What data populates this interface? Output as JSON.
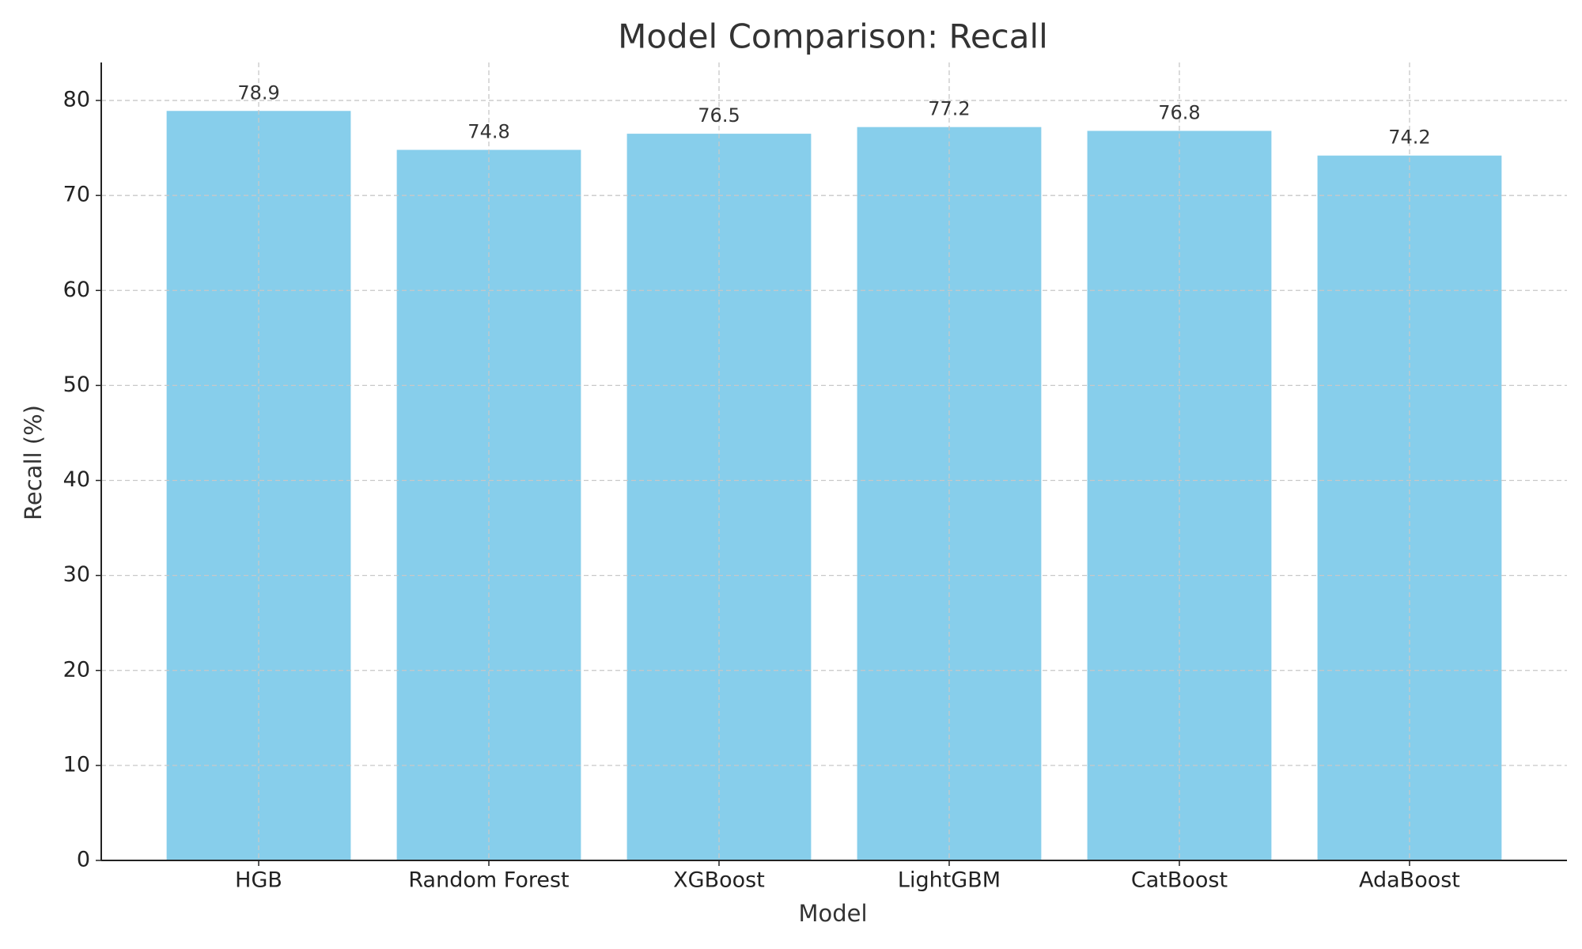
{
  "chart_data": {
    "type": "bar",
    "title": "Model Comparison: Recall",
    "x_label": "Model",
    "y_label": "Recall (%)",
    "categories": [
      "HGB",
      "Random Forest",
      "XGBoost",
      "LightGBM",
      "CatBoost",
      "AdaBoost"
    ],
    "values": [
      78.9,
      74.8,
      76.5,
      77.2,
      76.8,
      74.2
    ],
    "color": "#87ceeb",
    "ylim": [
      0,
      84
    ],
    "yticks": [
      0,
      10,
      20,
      30,
      40,
      50,
      60,
      70,
      80
    ],
    "grid": true
  }
}
